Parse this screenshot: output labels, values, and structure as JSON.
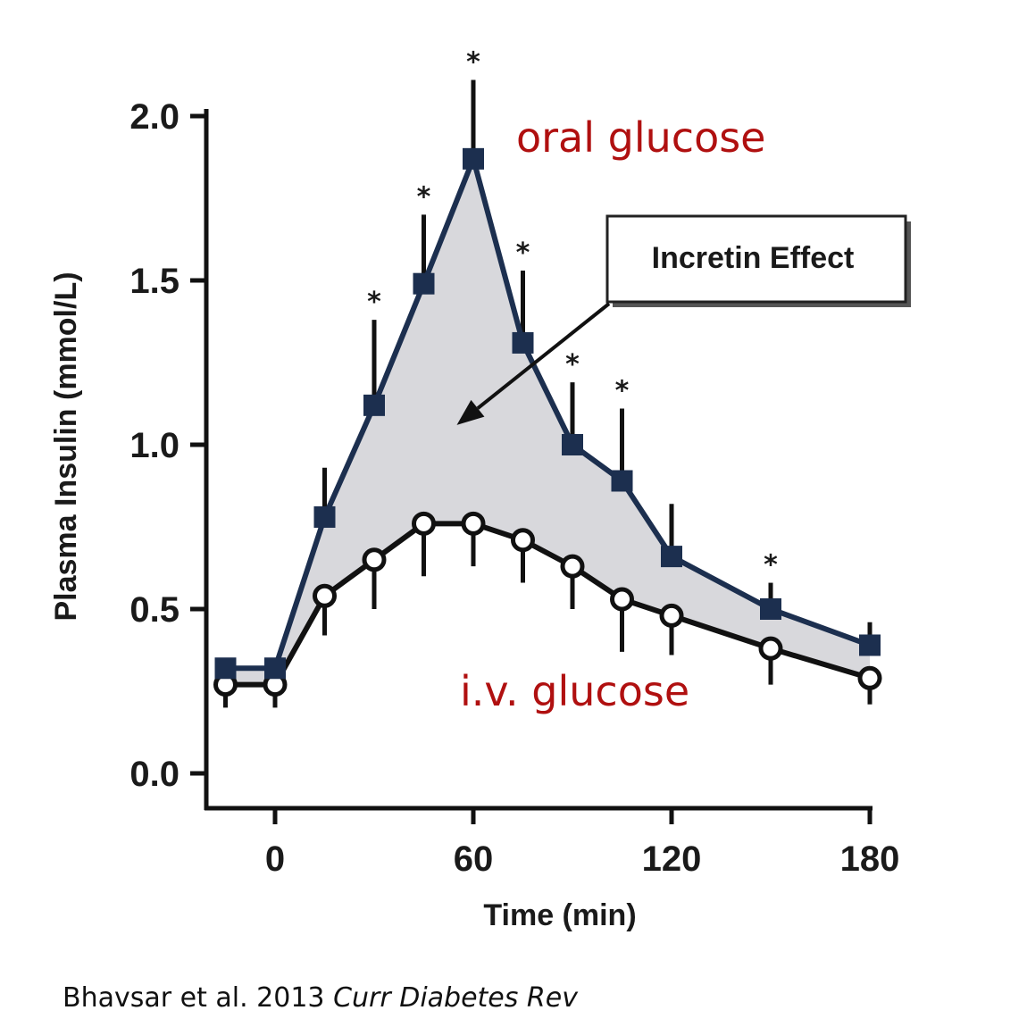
{
  "chart_data": {
    "type": "line",
    "xlabel": "Time (min)",
    "ylabel": "Plasma Insulin (mmol/L)",
    "xlim": [
      -20,
      180
    ],
    "ylim": [
      0,
      2.0
    ],
    "x_ticks": [
      0,
      60,
      120,
      180
    ],
    "x_tick_labels": [
      "0",
      "60",
      "120",
      "180"
    ],
    "y_ticks": [
      0,
      0.5,
      1.0,
      1.5,
      2.0
    ],
    "y_tick_labels": [
      "0.0",
      "0.5",
      "1.0",
      "1.5",
      "2.0"
    ],
    "grid": false,
    "shaded_region_between_series": true,
    "series": [
      {
        "name": "oral glucose",
        "marker": "filled-square",
        "color": "#1c2f4f",
        "x": [
          -15,
          0,
          15,
          30,
          45,
          60,
          75,
          90,
          105,
          120,
          150,
          180
        ],
        "y": [
          0.32,
          0.32,
          0.78,
          1.12,
          1.49,
          1.87,
          1.31,
          1.0,
          0.89,
          0.66,
          0.5,
          0.39
        ],
        "error_upper": [
          0.0,
          0.0,
          0.15,
          0.26,
          0.21,
          0.24,
          0.22,
          0.19,
          0.22,
          0.16,
          0.08,
          0.07
        ],
        "significant": [
          false,
          false,
          false,
          true,
          true,
          true,
          true,
          true,
          true,
          false,
          true,
          false
        ]
      },
      {
        "name": "i.v. glucose",
        "marker": "open-circle",
        "color": "#111111",
        "x": [
          -15,
          0,
          15,
          30,
          45,
          60,
          75,
          90,
          105,
          120,
          150,
          180
        ],
        "y": [
          0.27,
          0.27,
          0.54,
          0.65,
          0.76,
          0.76,
          0.71,
          0.63,
          0.53,
          0.48,
          0.38,
          0.29
        ],
        "error_lower": [
          0.07,
          0.07,
          0.12,
          0.15,
          0.16,
          0.13,
          0.13,
          0.13,
          0.16,
          0.12,
          0.11,
          0.08
        ]
      }
    ],
    "series_labels": {
      "oral": "oral glucose",
      "iv": "i.v. glucose",
      "label_color": "#b01010"
    },
    "annotation": {
      "text": "Incretin Effect",
      "arrow_target": [
        55,
        1.06
      ]
    },
    "shade_color": "#d8d8dc",
    "significance_marker": "*"
  },
  "citation": {
    "authors": "Bhavsar et al. 2013",
    "journal": "Curr Diabetes Rev"
  }
}
